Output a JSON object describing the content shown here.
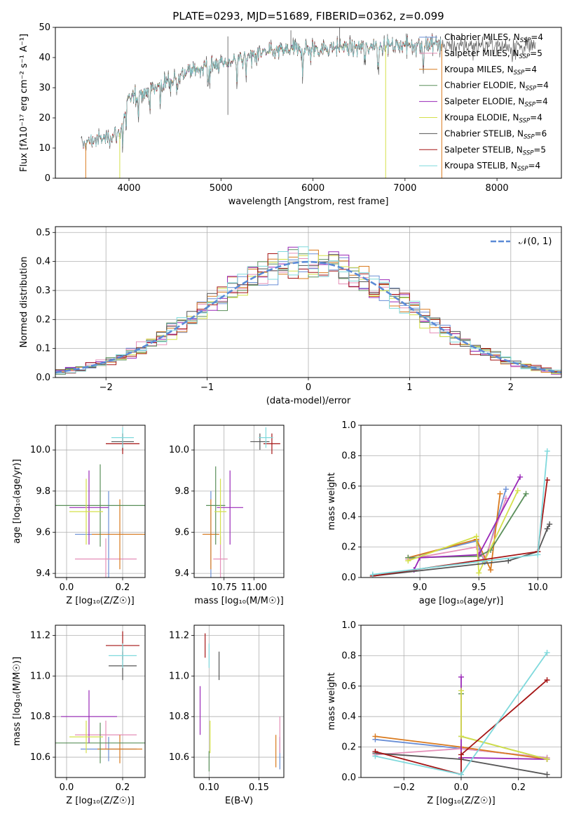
{
  "colors": {
    "Chabrier MILES": "#6a8fd6",
    "Salpeter MILES": "#e58fb8",
    "Kroupa MILES": "#d97a1e",
    "Chabrier ELODIE": "#5a8f5a",
    "Salpeter ELODIE": "#9a28b8",
    "Kroupa ELODIE": "#d4e04a",
    "Chabrier STELIB": "#555555",
    "Salpeter STELIB": "#a51515",
    "Kroupa STELIB": "#7fd9dc",
    "normal": "#5b8ad6",
    "grid": "#b0b0b0"
  },
  "chart_data": [
    {
      "id": "spectrum",
      "type": "line",
      "title": "PLATE=0293, MJD=51689, FIBERID=0362, z=0.099",
      "xlabel": "wavelength [Angstrom, rest frame]",
      "ylabel": "Flux [fλ10⁻¹⁷ erg cm⁻² s⁻¹ A⁻¹]",
      "xlim": [
        3200,
        8700
      ],
      "ylim": [
        0,
        50
      ],
      "xticks": [
        4000,
        5000,
        6000,
        7000,
        8000
      ],
      "yticks": [
        0,
        10,
        20,
        30,
        40,
        50
      ],
      "grid": false,
      "legend_position": "top-right",
      "continuum": [
        [
          3480,
          11
        ],
        [
          3600,
          12.5
        ],
        [
          3700,
          13
        ],
        [
          3800,
          14
        ],
        [
          3900,
          15
        ],
        [
          4000,
          26
        ],
        [
          4100,
          28
        ],
        [
          4200,
          29
        ],
        [
          4300,
          30
        ],
        [
          4400,
          32
        ],
        [
          4500,
          33
        ],
        [
          4600,
          35
        ],
        [
          4700,
          36
        ],
        [
          4800,
          37
        ],
        [
          4900,
          37.5
        ],
        [
          5000,
          38
        ],
        [
          5100,
          38.5
        ],
        [
          5200,
          39.5
        ],
        [
          5300,
          40.5
        ],
        [
          5400,
          41
        ],
        [
          5500,
          41.5
        ],
        [
          5600,
          42
        ],
        [
          5700,
          42.5
        ],
        [
          5800,
          43
        ],
        [
          5900,
          42.5
        ],
        [
          6000,
          43
        ],
        [
          6100,
          43
        ],
        [
          6200,
          43.5
        ],
        [
          6300,
          43.5
        ],
        [
          6400,
          43.5
        ],
        [
          6500,
          43.5
        ],
        [
          6600,
          44
        ],
        [
          6700,
          44
        ],
        [
          6800,
          44
        ],
        [
          6900,
          44
        ],
        [
          7000,
          44.5
        ],
        [
          7200,
          44.5
        ],
        [
          7400,
          44.5
        ],
        [
          7600,
          44
        ],
        [
          7800,
          44
        ],
        [
          8000,
          44
        ],
        [
          8200,
          44
        ],
        [
          8400,
          43.5
        ]
      ],
      "series": [
        {
          "name": "Chabrier MILES, N_SSP=4",
          "label": "Chabrier MILES, N",
          "nssp": "4",
          "range": [
            3500,
            7400
          ]
        },
        {
          "name": "Salpeter MILES, N_SSP=5",
          "label": "Salpeter MILES, N",
          "nssp": "5",
          "range": [
            3500,
            7400
          ]
        },
        {
          "name": "Kroupa MILES, N_SSP=4",
          "label": "Kroupa MILES, N",
          "nssp": "4",
          "range": [
            3530,
            7400
          ]
        },
        {
          "name": "Chabrier ELODIE, N_SSP=4",
          "label": "Chabrier ELODIE, N",
          "nssp": "4",
          "range": [
            3900,
            6790
          ]
        },
        {
          "name": "Salpeter ELODIE, N_SSP=4",
          "label": "Salpeter ELODIE, N",
          "nssp": "4",
          "range": [
            3900,
            6790
          ]
        },
        {
          "name": "Kroupa ELODIE, N_SSP=4",
          "label": "Kroupa ELODIE, N",
          "nssp": "4",
          "range": [
            3900,
            6790
          ]
        },
        {
          "name": "Chabrier STELIB, N_SSP=6",
          "label": "Chabrier STELIB, N",
          "nssp": "6",
          "range": [
            3480,
            8420
          ]
        },
        {
          "name": "Salpeter STELIB, N_SSP=5",
          "label": "Salpeter STELIB, N",
          "nssp": "5",
          "range": [
            3500,
            7400
          ]
        },
        {
          "name": "Kroupa STELIB, N_SSP=4",
          "label": "Kroupa STELIB, N",
          "nssp": "4",
          "range": [
            3500,
            7400
          ]
        }
      ],
      "drops": [
        [
          3530,
          0
        ],
        [
          3900,
          0
        ],
        [
          6790,
          0
        ],
        [
          7400,
          0
        ]
      ]
    },
    {
      "id": "residuals",
      "type": "line",
      "xlabel": "(data-model)/error",
      "ylabel": "Normed distribution",
      "xlim": [
        -2.5,
        2.5
      ],
      "ylim": [
        0,
        0.52
      ],
      "xticks": [
        -2,
        -1,
        0,
        1,
        2
      ],
      "yticks": [
        0.0,
        0.1,
        0.2,
        0.3,
        0.4,
        0.5
      ],
      "grid": true,
      "legend_position": "top-right",
      "legend_label": "𝒩(0, 1)",
      "bin_width": 0.1,
      "normal_mean": 0,
      "normal_sigma": 1
    },
    {
      "id": "age-Z",
      "type": "scatter",
      "xlabel": "Z [log₁₀(Z/Z☉)]",
      "ylabel": "age  [log₁₀(age/yr)]",
      "xlim": [
        -0.04,
        0.28
      ],
      "ylim": [
        9.38,
        10.12
      ],
      "xticks": [
        0.0,
        0.2
      ],
      "yticks": [
        9.4,
        9.6,
        9.8,
        10.0
      ],
      "grid": true,
      "points": [
        {
          "model": "Chabrier MILES",
          "x": 0.15,
          "y": 9.59,
          "xerr": 0.12,
          "yerr": 0.21
        },
        {
          "model": "Salpeter MILES",
          "x": 0.14,
          "y": 9.47,
          "xerr": 0.11,
          "yerr": 0.1
        },
        {
          "model": "Kroupa MILES",
          "x": 0.19,
          "y": 9.59,
          "xerr": 0.1,
          "yerr": 0.17
        },
        {
          "model": "Chabrier ELODIE",
          "x": 0.12,
          "y": 9.73,
          "xerr": 0.16,
          "yerr": 0.2
        },
        {
          "model": "Salpeter ELODIE",
          "x": 0.08,
          "y": 9.72,
          "xerr": 0.07,
          "yerr": 0.18
        },
        {
          "model": "Kroupa ELODIE",
          "x": 0.07,
          "y": 9.7,
          "xerr": 0.06,
          "yerr": 0.16
        },
        {
          "model": "Chabrier STELIB",
          "x": 0.2,
          "y": 10.04,
          "xerr": 0.04,
          "yerr": 0.04
        },
        {
          "model": "Salpeter STELIB",
          "x": 0.2,
          "y": 10.03,
          "xerr": 0.06,
          "yerr": 0.05
        },
        {
          "model": "Kroupa STELIB",
          "x": 0.2,
          "y": 10.06,
          "xerr": 0.04,
          "yerr": 0.05
        }
      ]
    },
    {
      "id": "age-mass",
      "type": "scatter",
      "xlabel": "mass [log₁₀(M/M☉)]",
      "ylabel": "",
      "xlim": [
        10.5,
        11.25
      ],
      "ylim": [
        9.38,
        10.12
      ],
      "xticks": [
        10.75,
        11.0
      ],
      "xticklabels": [
        "10.75",
        "11.00"
      ],
      "yticks": [
        9.4,
        9.6,
        9.8,
        10.0
      ],
      "grid": true,
      "points": [
        {
          "model": "Chabrier MILES",
          "x": 10.64,
          "y": 9.59,
          "xerr": 0.06,
          "yerr": 0.21
        },
        {
          "model": "Salpeter MILES",
          "x": 10.72,
          "y": 9.47,
          "xerr": 0.06,
          "yerr": 0.11
        },
        {
          "model": "Kroupa MILES",
          "x": 10.64,
          "y": 9.59,
          "xerr": 0.07,
          "yerr": 0.17
        },
        {
          "model": "Chabrier ELODIE",
          "x": 10.68,
          "y": 9.73,
          "xerr": 0.08,
          "yerr": 0.19
        },
        {
          "model": "Salpeter ELODIE",
          "x": 10.8,
          "y": 9.72,
          "xerr": 0.11,
          "yerr": 0.18
        },
        {
          "model": "Kroupa ELODIE",
          "x": 10.72,
          "y": 9.7,
          "xerr": 0.05,
          "yerr": 0.16
        },
        {
          "model": "Chabrier STELIB",
          "x": 11.05,
          "y": 10.04,
          "xerr": 0.08,
          "yerr": 0.04
        },
        {
          "model": "Salpeter STELIB",
          "x": 11.15,
          "y": 10.03,
          "xerr": 0.07,
          "yerr": 0.05
        },
        {
          "model": "Kroupa STELIB",
          "x": 11.1,
          "y": 10.06,
          "xerr": 0.06,
          "yerr": 0.05
        }
      ]
    },
    {
      "id": "mass-weight-age",
      "type": "line",
      "xlabel": "age  [log₁₀(age/yr)]",
      "ylabel": "mass weight",
      "xlim": [
        8.5,
        10.2
      ],
      "ylim": [
        0,
        1.0
      ],
      "xticks": [
        9.0,
        9.5,
        10.0
      ],
      "yticks": [
        0.0,
        0.2,
        0.4,
        0.6,
        0.8,
        1.0
      ],
      "grid": true,
      "series": [
        {
          "model": "Chabrier MILES",
          "points": [
            [
              8.9,
              0.13
            ],
            [
              9.48,
              0.24
            ],
            [
              9.55,
              0.1
            ],
            [
              9.73,
              0.58
            ]
          ]
        },
        {
          "model": "Salpeter MILES",
          "points": [
            [
              8.9,
              0.12
            ],
            [
              9.48,
              0.2
            ],
            [
              9.55,
              0.12
            ],
            [
              9.73,
              0.52
            ]
          ]
        },
        {
          "model": "Kroupa MILES",
          "points": [
            [
              8.9,
              0.13
            ],
            [
              9.48,
              0.25
            ],
            [
              9.6,
              0.05
            ],
            [
              9.68,
              0.55
            ]
          ]
        },
        {
          "model": "Chabrier ELODIE",
          "points": [
            [
              8.9,
              0.13
            ],
            [
              9.5,
              0.14
            ],
            [
              9.6,
              0.18
            ],
            [
              9.9,
              0.55
            ]
          ]
        },
        {
          "model": "Salpeter ELODIE",
          "points": [
            [
              8.95,
              0.05
            ],
            [
              9.0,
              0.13
            ],
            [
              9.5,
              0.15
            ],
            [
              9.85,
              0.66
            ]
          ]
        },
        {
          "model": "Kroupa ELODIE",
          "points": [
            [
              8.9,
              0.11
            ],
            [
              9.48,
              0.27
            ],
            [
              9.5,
              0.03
            ],
            [
              9.83,
              0.57
            ]
          ]
        },
        {
          "model": "Chabrier STELIB",
          "points": [
            [
              8.6,
              0.01
            ],
            [
              9.75,
              0.11
            ],
            [
              10.0,
              0.17
            ],
            [
              10.08,
              0.32
            ],
            [
              10.1,
              0.35
            ]
          ]
        },
        {
          "model": "Salpeter STELIB",
          "points": [
            [
              8.6,
              0.01
            ],
            [
              10.0,
              0.17
            ],
            [
              10.08,
              0.64
            ]
          ]
        },
        {
          "model": "Kroupa STELIB",
          "points": [
            [
              8.6,
              0.02
            ],
            [
              10.0,
              0.15
            ],
            [
              10.08,
              0.83
            ]
          ]
        }
      ]
    },
    {
      "id": "mass-Z",
      "type": "scatter",
      "xlabel": "Z [log₁₀(Z/Z☉)]",
      "ylabel": "mass [log₁₀(M/M☉)]",
      "xlim": [
        -0.04,
        0.28
      ],
      "ylim": [
        10.5,
        11.25
      ],
      "xticks": [
        0.0,
        0.2
      ],
      "yticks": [
        10.6,
        10.8,
        11.0,
        11.2
      ],
      "grid": true,
      "points": [
        {
          "model": "Chabrier MILES",
          "x": 0.15,
          "y": 10.64,
          "xerr": 0.1,
          "yerr": 0.06
        },
        {
          "model": "Salpeter MILES",
          "x": 0.14,
          "y": 10.71,
          "xerr": 0.11,
          "yerr": 0.07
        },
        {
          "model": "Kroupa MILES",
          "x": 0.19,
          "y": 10.64,
          "xerr": 0.08,
          "yerr": 0.07
        },
        {
          "model": "Chabrier ELODIE",
          "x": 0.12,
          "y": 10.67,
          "xerr": 0.16,
          "yerr": 0.1
        },
        {
          "model": "Salpeter ELODIE",
          "x": 0.08,
          "y": 10.8,
          "xerr": 0.1,
          "yerr": 0.13
        },
        {
          "model": "Kroupa ELODIE",
          "x": 0.07,
          "y": 10.7,
          "xerr": 0.06,
          "yerr": 0.08
        },
        {
          "model": "Chabrier STELIB",
          "x": 0.2,
          "y": 11.05,
          "xerr": 0.05,
          "yerr": 0.07
        },
        {
          "model": "Salpeter STELIB",
          "x": 0.2,
          "y": 11.15,
          "xerr": 0.06,
          "yerr": 0.07
        },
        {
          "model": "Kroupa STELIB",
          "x": 0.2,
          "y": 11.1,
          "xerr": 0.05,
          "yerr": 0.06
        }
      ]
    },
    {
      "id": "mass-EBV",
      "type": "scatter",
      "xlabel": "E(B-V)",
      "ylabel": "",
      "xlim": [
        0.085,
        0.175
      ],
      "ylim": [
        10.5,
        11.25
      ],
      "xticks": [
        0.1,
        0.15
      ],
      "xticklabels": [
        "0.10",
        "0.15"
      ],
      "yticks": [
        10.6,
        10.8,
        11.0,
        11.2
      ],
      "grid": true,
      "points": [
        {
          "model": "Chabrier MILES",
          "x": 0.171,
          "y": 10.62,
          "xerr": 0,
          "yerr": 0.08
        },
        {
          "model": "Salpeter MILES",
          "x": 0.171,
          "y": 10.71,
          "xerr": 0,
          "yerr": 0.09
        },
        {
          "model": "Kroupa MILES",
          "x": 0.167,
          "y": 10.63,
          "xerr": 0,
          "yerr": 0.08
        },
        {
          "model": "Chabrier ELODIE",
          "x": 0.1,
          "y": 10.58,
          "xerr": 0,
          "yerr": 0.05
        },
        {
          "model": "Salpeter ELODIE",
          "x": 0.091,
          "y": 10.83,
          "xerr": 0,
          "yerr": 0.12
        },
        {
          "model": "Kroupa ELODIE",
          "x": 0.101,
          "y": 10.7,
          "xerr": 0,
          "yerr": 0.08
        },
        {
          "model": "Chabrier STELIB",
          "x": 0.11,
          "y": 11.05,
          "xerr": 0,
          "yerr": 0.07
        },
        {
          "model": "Salpeter STELIB",
          "x": 0.096,
          "y": 11.15,
          "xerr": 0,
          "yerr": 0.06
        },
        {
          "model": "Kroupa STELIB",
          "x": 0.1,
          "y": 11.1,
          "xerr": 0,
          "yerr": 0.06
        }
      ]
    },
    {
      "id": "mass-weight-Z",
      "type": "line",
      "xlabel": "Z [log₁₀(Z/Z☉)]",
      "ylabel": "mass weight",
      "xlim": [
        -0.35,
        0.35
      ],
      "ylim": [
        0,
        1.0
      ],
      "xticks": [
        -0.2,
        0.0,
        0.2
      ],
      "yticks": [
        0.0,
        0.2,
        0.4,
        0.6,
        0.8,
        1.0
      ],
      "grid": true,
      "series": [
        {
          "model": "Chabrier MILES",
          "points": [
            [
              -0.3,
              0.25
            ],
            [
              0.0,
              0.19
            ],
            [
              0.3,
              0.13
            ]
          ]
        },
        {
          "model": "Salpeter MILES",
          "points": [
            [
              -0.3,
              0.15
            ],
            [
              0.0,
              0.19
            ],
            [
              0.3,
              0.13
            ]
          ]
        },
        {
          "model": "Kroupa MILES",
          "points": [
            [
              -0.3,
              0.27
            ],
            [
              0.0,
              0.2
            ],
            [
              0.3,
              0.12
            ]
          ]
        },
        {
          "model": "Chabrier ELODIE",
          "points": [
            [
              0.0,
              0.55
            ],
            [
              0.0,
              0.27
            ],
            [
              0.3,
              0.12
            ]
          ]
        },
        {
          "model": "Salpeter ELODIE",
          "points": [
            [
              0.0,
              0.66
            ],
            [
              0.0,
              0.13
            ],
            [
              0.3,
              0.12
            ]
          ]
        },
        {
          "model": "Kroupa ELODIE",
          "points": [
            [
              0.0,
              0.57
            ],
            [
              0.0,
              0.27
            ],
            [
              0.3,
              0.12
            ]
          ]
        },
        {
          "model": "Chabrier STELIB",
          "points": [
            [
              -0.3,
              0.16
            ],
            [
              0.0,
              0.12
            ],
            [
              0.3,
              0.02
            ]
          ]
        },
        {
          "model": "Salpeter STELIB",
          "points": [
            [
              -0.3,
              0.17
            ],
            [
              0.0,
              0.02
            ],
            [
              0.0,
              0.15
            ],
            [
              0.3,
              0.64
            ]
          ]
        },
        {
          "model": "Kroupa STELIB",
          "points": [
            [
              -0.3,
              0.14
            ],
            [
              0.0,
              0.02
            ],
            [
              0.3,
              0.82
            ]
          ]
        }
      ]
    }
  ]
}
